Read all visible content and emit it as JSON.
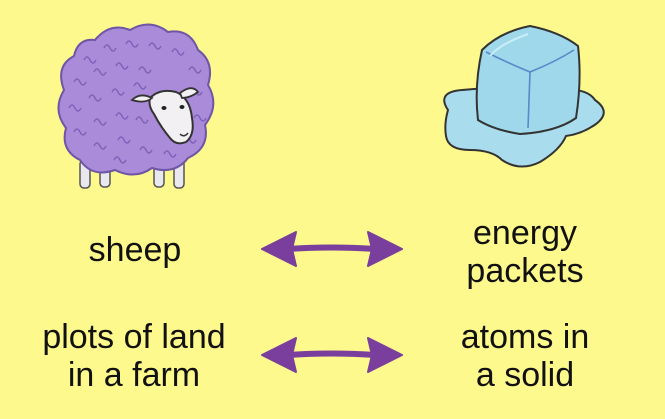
{
  "left_column": {
    "row1": {
      "lines": [
        "sheep"
      ]
    },
    "row2": {
      "lines": [
        "plots of land",
        "in a farm"
      ]
    }
  },
  "right_column": {
    "row1": {
      "lines": [
        "energy",
        "packets"
      ]
    },
    "row2": {
      "lines": [
        "atoms in",
        "a solid"
      ]
    }
  },
  "colors": {
    "background": "#FDF98C",
    "arrow": "#7A3E9D",
    "sheep_wool": "#A98BD9",
    "ice_cube": "#9ED8EA",
    "puddle": "#A9DCEC"
  },
  "icons": {
    "left": "sheep-icon",
    "right": "melting-ice-cube-icon",
    "arrows": "double-headed-arrow-icon"
  }
}
